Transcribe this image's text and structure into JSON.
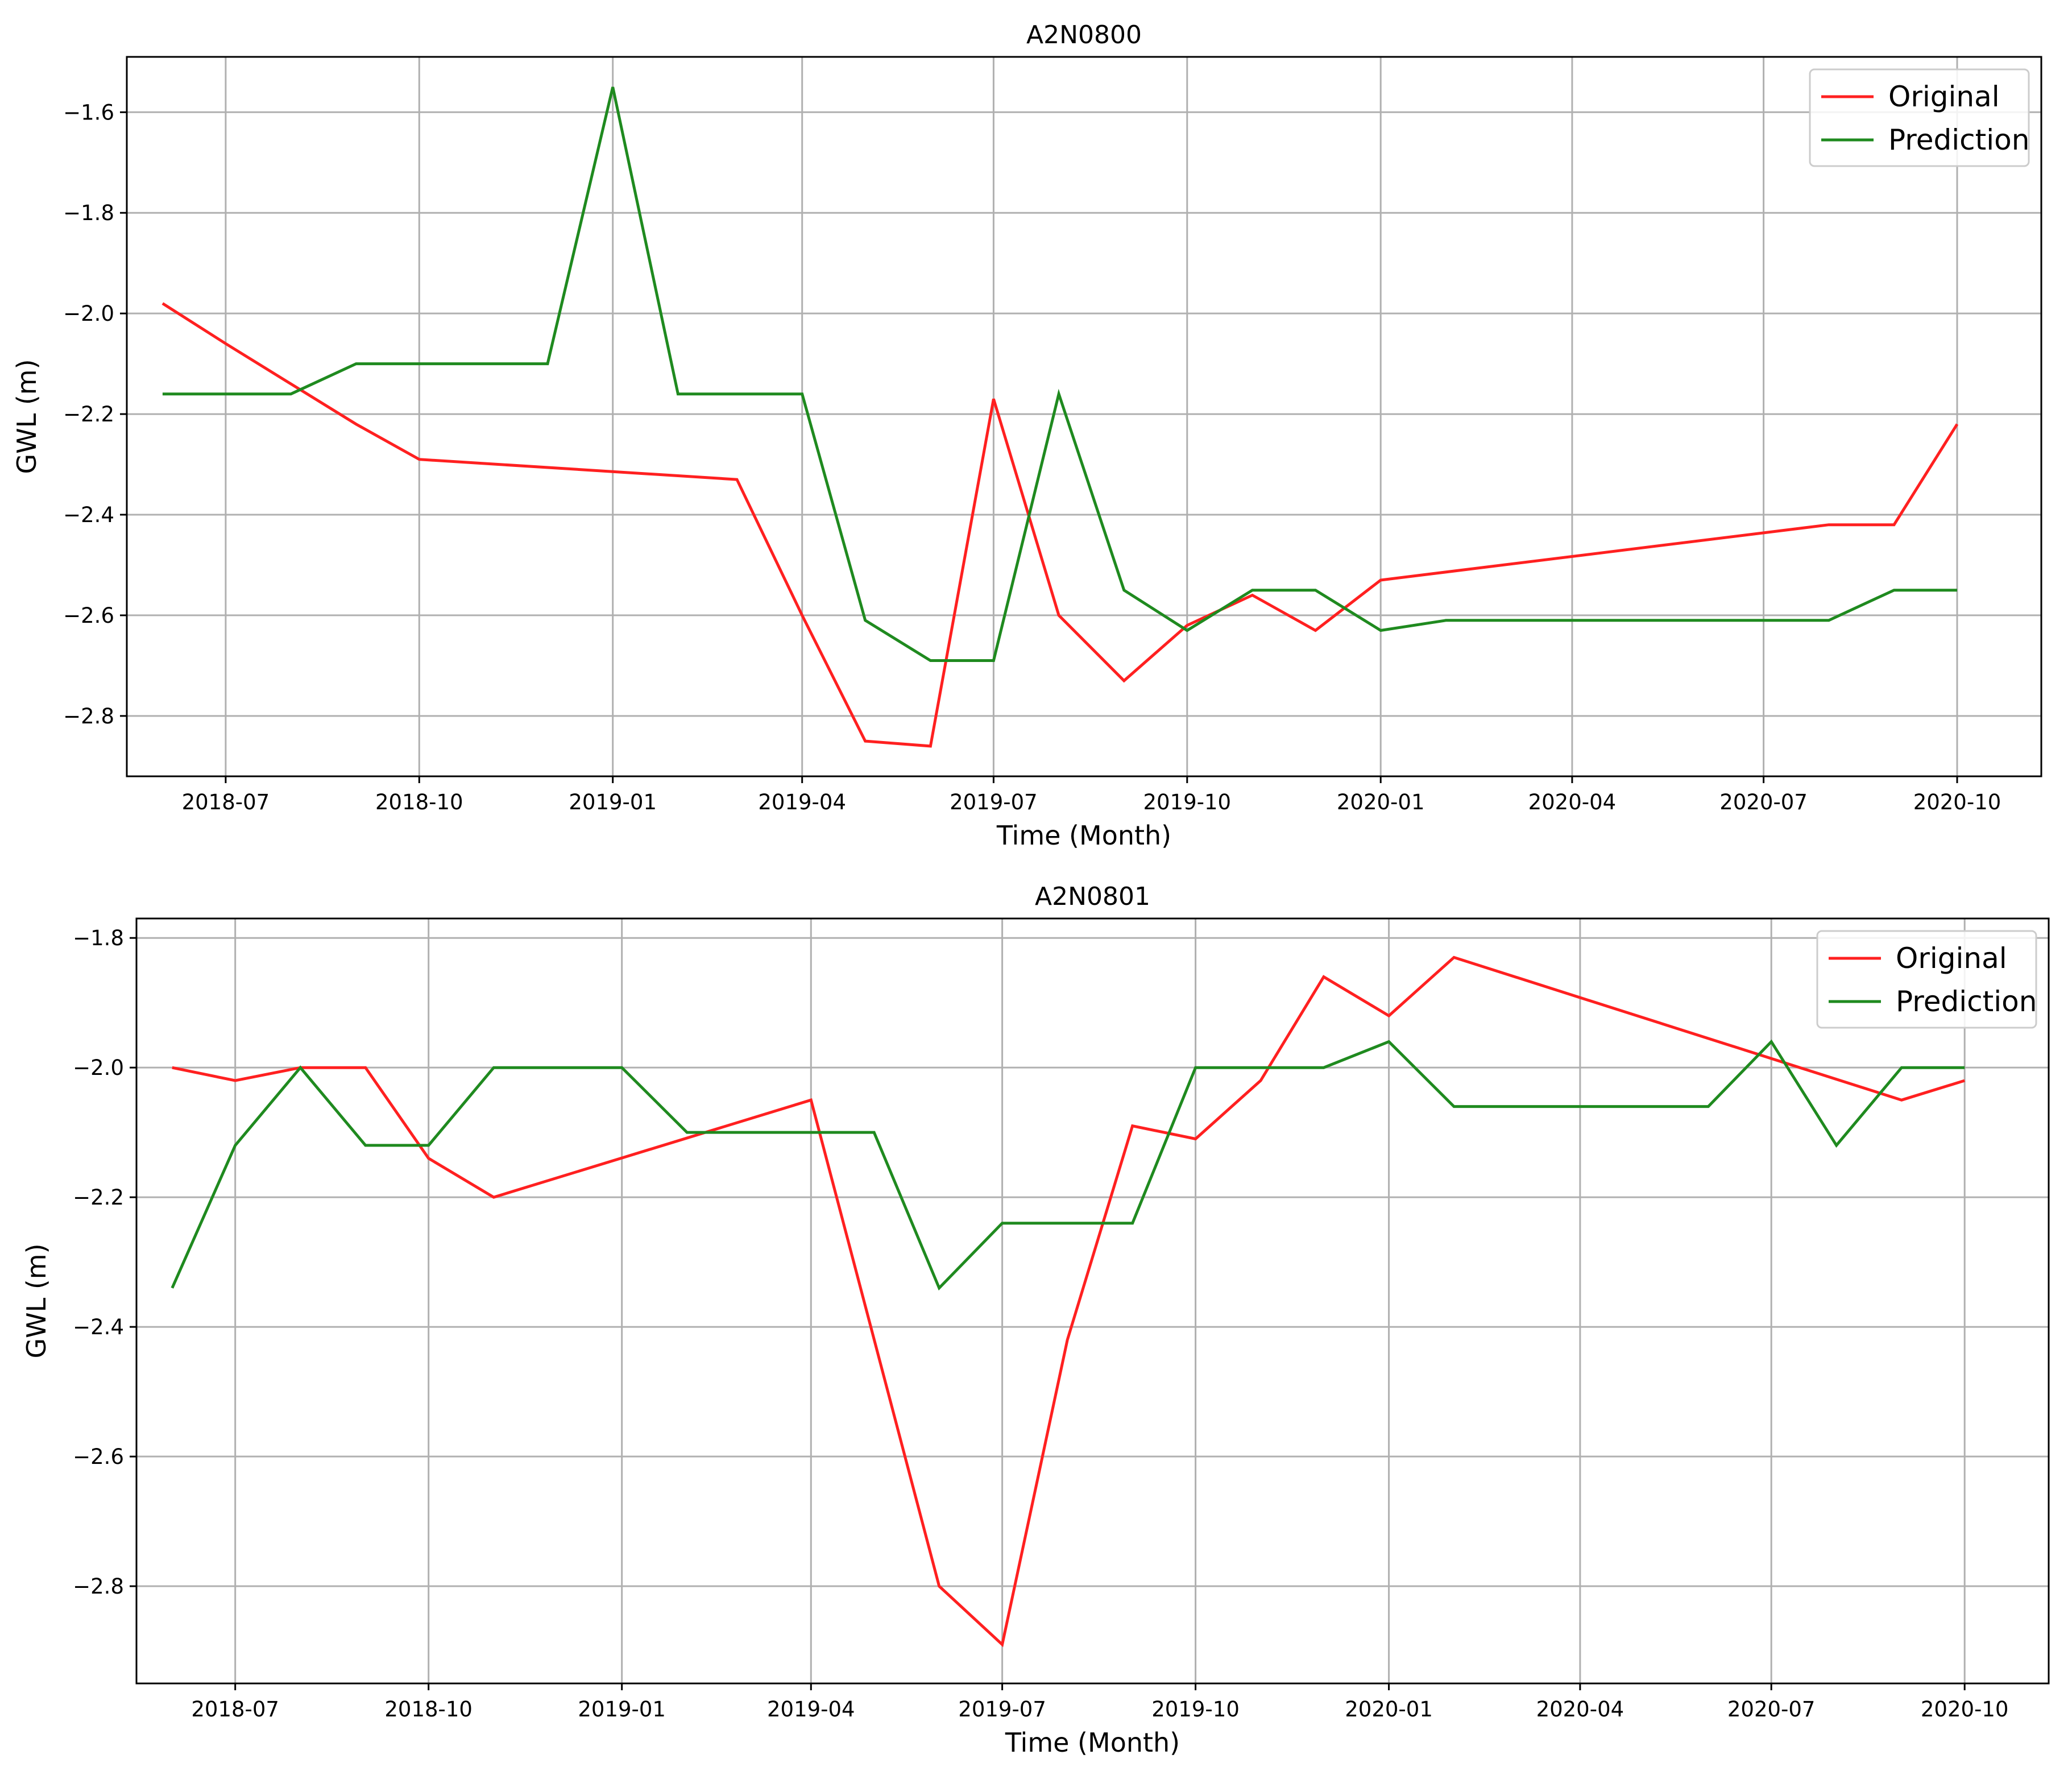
{
  "colors": {
    "original": "#ff2020",
    "prediction": "#1f8a1f"
  },
  "chart_data": [
    {
      "type": "line",
      "title": "A2N0800",
      "xlabel": "Time (Month)",
      "ylabel": "GWL (m)",
      "xlim": [
        "2018-05-15",
        "2020-11-10"
      ],
      "ylim": [
        -2.92,
        -1.49
      ],
      "xticks": [
        "2018-07",
        "2018-10",
        "2019-01",
        "2019-04",
        "2019-07",
        "2019-10",
        "2020-01",
        "2020-04",
        "2020-07",
        "2020-10"
      ],
      "yticks": [
        -1.6,
        -1.8,
        -2.0,
        -2.2,
        -2.4,
        -2.6,
        -2.8
      ],
      "grid": true,
      "legend": "top-right",
      "series": [
        {
          "name": "Original",
          "color_key": "original",
          "x": [
            "2018-06",
            "2018-07",
            "2018-08",
            "2018-09",
            "2018-10",
            "2019-03",
            "2019-04",
            "2019-05",
            "2019-06",
            "2019-07",
            "2019-08",
            "2019-09",
            "2019-10",
            "2019-11",
            "2019-12",
            "2020-01",
            "2020-08",
            "2020-09",
            "2020-10"
          ],
          "values": [
            -1.98,
            -2.06,
            -2.14,
            -2.22,
            -2.29,
            -2.33,
            -2.6,
            -2.85,
            -2.86,
            -2.17,
            -2.6,
            -2.73,
            -2.62,
            -2.56,
            -2.63,
            -2.53,
            -2.42,
            -2.42,
            -2.22
          ]
        },
        {
          "name": "Prediction",
          "color_key": "prediction",
          "x": [
            "2018-06",
            "2018-08",
            "2018-09",
            "2018-12",
            "2019-01",
            "2019-02",
            "2019-04",
            "2019-05",
            "2019-06",
            "2019-07",
            "2019-08",
            "2019-09",
            "2019-10",
            "2019-11",
            "2019-12",
            "2020-01",
            "2020-02",
            "2020-08",
            "2020-09",
            "2020-10"
          ],
          "values": [
            -2.16,
            -2.16,
            -2.1,
            -2.1,
            -1.55,
            -2.16,
            -2.16,
            -2.61,
            -2.69,
            -2.69,
            -2.16,
            -2.55,
            -2.63,
            -2.55,
            -2.55,
            -2.63,
            -2.61,
            -2.61,
            -2.55,
            -2.55
          ]
        }
      ]
    },
    {
      "type": "line",
      "title": "A2N0801",
      "xlabel": "Time (Month)",
      "ylabel": "GWL (m)",
      "xlim": [
        "2018-05-15",
        "2020-11-10"
      ],
      "ylim": [
        -2.95,
        -1.77
      ],
      "xticks": [
        "2018-07",
        "2018-10",
        "2019-01",
        "2019-04",
        "2019-07",
        "2019-10",
        "2020-01",
        "2020-04",
        "2020-07",
        "2020-10"
      ],
      "yticks": [
        -1.8,
        -2.0,
        -2.2,
        -2.4,
        -2.6,
        -2.8
      ],
      "grid": true,
      "legend": "top-right",
      "series": [
        {
          "name": "Original",
          "color_key": "original",
          "x": [
            "2018-06",
            "2018-07",
            "2018-08",
            "2018-09",
            "2018-10",
            "2018-11",
            "2019-04",
            "2019-06",
            "2019-07",
            "2019-08",
            "2019-09",
            "2019-10",
            "2019-11",
            "2019-12",
            "2020-01",
            "2020-02",
            "2020-09",
            "2020-10"
          ],
          "values": [
            -2.0,
            -2.02,
            -2.0,
            -2.0,
            -2.14,
            -2.2,
            -2.05,
            -2.8,
            -2.89,
            -2.42,
            -2.09,
            -2.11,
            -2.02,
            -1.86,
            -1.92,
            -1.83,
            -2.05,
            -2.02
          ]
        },
        {
          "name": "Prediction",
          "color_key": "prediction",
          "x": [
            "2018-06",
            "2018-07",
            "2018-08",
            "2018-09",
            "2018-10",
            "2018-11",
            "2019-01",
            "2019-02",
            "2019-05",
            "2019-06",
            "2019-07",
            "2019-09",
            "2019-10",
            "2019-12",
            "2020-01",
            "2020-02",
            "2020-06",
            "2020-07",
            "2020-08",
            "2020-09",
            "2020-10"
          ],
          "values": [
            -2.34,
            -2.12,
            -2.0,
            -2.12,
            -2.12,
            -2.0,
            -2.0,
            -2.1,
            -2.1,
            -2.34,
            -2.24,
            -2.24,
            -2.0,
            -2.0,
            -1.96,
            -2.06,
            -2.06,
            -1.96,
            -2.12,
            -2.0,
            -2.0
          ]
        }
      ]
    }
  ]
}
